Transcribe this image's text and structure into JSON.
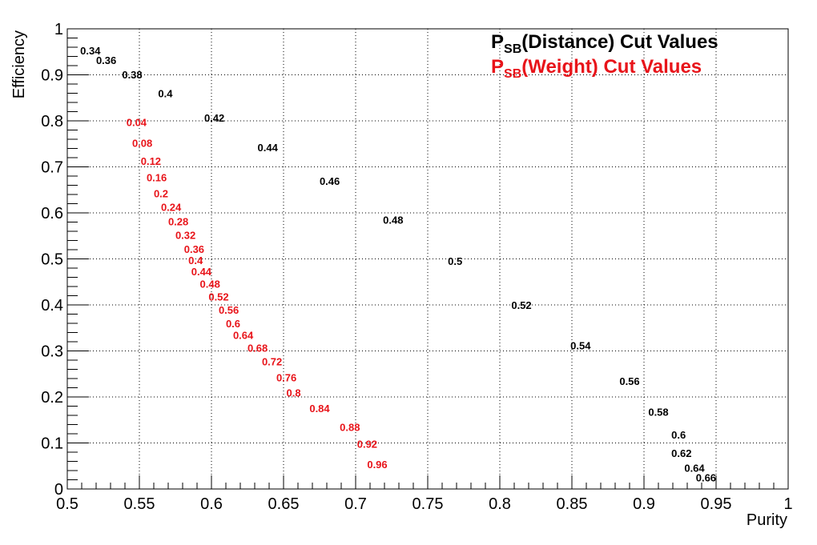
{
  "chart_data": {
    "type": "scatter",
    "title": "",
    "xlabel": "Purity",
    "ylabel": "Efficiency",
    "xlim": [
      0.5,
      1.0
    ],
    "ylim": [
      0,
      1.0
    ],
    "x_ticks": [
      "0.5",
      "0.55",
      "0.6",
      "0.65",
      "0.7",
      "0.75",
      "0.8",
      "0.85",
      "0.9",
      "0.95",
      "1"
    ],
    "y_ticks": [
      "0",
      "0.1",
      "0.2",
      "0.3",
      "0.4",
      "0.5",
      "0.6",
      "0.7",
      "0.8",
      "0.9",
      "1"
    ],
    "grid": true,
    "legend_position": "top-right",
    "series": [
      {
        "name": "P_SB(Distance) Cut Values",
        "legend_main": "P",
        "legend_sub": "SB",
        "legend_rest": "(Distance) Cut Values",
        "color": "#000000",
        "points": [
          {
            "x": 0.516,
            "y": 0.953,
            "label": "0.34"
          },
          {
            "x": 0.527,
            "y": 0.932,
            "label": "0.36"
          },
          {
            "x": 0.545,
            "y": 0.901,
            "label": "0.38"
          },
          {
            "x": 0.568,
            "y": 0.86,
            "label": "0.4"
          },
          {
            "x": 0.602,
            "y": 0.807,
            "label": "0.42"
          },
          {
            "x": 0.639,
            "y": 0.743,
            "label": "0.44"
          },
          {
            "x": 0.682,
            "y": 0.67,
            "label": "0.46"
          },
          {
            "x": 0.726,
            "y": 0.585,
            "label": "0.48"
          },
          {
            "x": 0.769,
            "y": 0.496,
            "label": "0.5"
          },
          {
            "x": 0.815,
            "y": 0.4,
            "label": "0.52"
          },
          {
            "x": 0.856,
            "y": 0.312,
            "label": "0.54"
          },
          {
            "x": 0.89,
            "y": 0.235,
            "label": "0.56"
          },
          {
            "x": 0.91,
            "y": 0.168,
            "label": "0.58"
          },
          {
            "x": 0.924,
            "y": 0.118,
            "label": "0.6"
          },
          {
            "x": 0.926,
            "y": 0.078,
            "label": "0.62"
          },
          {
            "x": 0.935,
            "y": 0.046,
            "label": "0.64"
          },
          {
            "x": 0.943,
            "y": 0.025,
            "label": "0.66"
          }
        ]
      },
      {
        "name": "P_SB(Weight) Cut Values",
        "legend_main": "P",
        "legend_sub": "SB",
        "legend_rest": "(Weight) Cut Values",
        "color": "#e8141a",
        "points": [
          {
            "x": 0.548,
            "y": 0.797,
            "label": "0.04"
          },
          {
            "x": 0.552,
            "y": 0.752,
            "label": "0.08"
          },
          {
            "x": 0.558,
            "y": 0.713,
            "label": "0.12"
          },
          {
            "x": 0.562,
            "y": 0.677,
            "label": "0.16"
          },
          {
            "x": 0.565,
            "y": 0.643,
            "label": "0.2"
          },
          {
            "x": 0.572,
            "y": 0.613,
            "label": "0.24"
          },
          {
            "x": 0.577,
            "y": 0.582,
            "label": "0.28"
          },
          {
            "x": 0.582,
            "y": 0.552,
            "label": "0.32"
          },
          {
            "x": 0.588,
            "y": 0.522,
            "label": "0.36"
          },
          {
            "x": 0.589,
            "y": 0.497,
            "label": "0.4"
          },
          {
            "x": 0.593,
            "y": 0.473,
            "label": "0.44"
          },
          {
            "x": 0.599,
            "y": 0.446,
            "label": "0.48"
          },
          {
            "x": 0.605,
            "y": 0.418,
            "label": "0.52"
          },
          {
            "x": 0.612,
            "y": 0.39,
            "label": "0.56"
          },
          {
            "x": 0.615,
            "y": 0.36,
            "label": "0.6"
          },
          {
            "x": 0.622,
            "y": 0.335,
            "label": "0.64"
          },
          {
            "x": 0.632,
            "y": 0.307,
            "label": "0.68"
          },
          {
            "x": 0.642,
            "y": 0.277,
            "label": "0.72"
          },
          {
            "x": 0.652,
            "y": 0.243,
            "label": "0.76"
          },
          {
            "x": 0.657,
            "y": 0.21,
            "label": "0.8"
          },
          {
            "x": 0.675,
            "y": 0.176,
            "label": "0.84"
          },
          {
            "x": 0.696,
            "y": 0.135,
            "label": "0.88"
          },
          {
            "x": 0.708,
            "y": 0.098,
            "label": "0.92"
          },
          {
            "x": 0.715,
            "y": 0.054,
            "label": "0.96"
          }
        ]
      }
    ]
  }
}
